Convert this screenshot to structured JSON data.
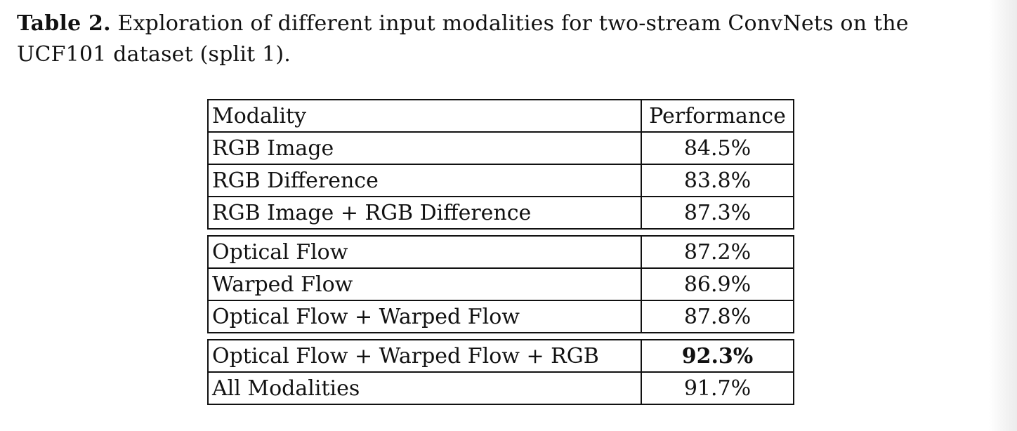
{
  "caption": {
    "label": "Table 2.",
    "text": "Exploration of different input modalities for two-stream ConvNets on the UCF101 dataset (split 1)."
  },
  "table": {
    "header": {
      "modality": "Modality",
      "performance": "Performance"
    },
    "groups": [
      [
        {
          "modality": "RGB Image",
          "performance": "84.5%"
        },
        {
          "modality": "RGB Difference",
          "performance": "83.8%"
        },
        {
          "modality": "RGB Image + RGB Difference",
          "performance": "87.3%"
        }
      ],
      [
        {
          "modality": "Optical Flow",
          "performance": "87.2%"
        },
        {
          "modality": "Warped Flow",
          "performance": "86.9%"
        },
        {
          "modality": "Optical Flow + Warped Flow",
          "performance": "87.8%"
        }
      ],
      [
        {
          "modality": "Optical Flow + Warped Flow + RGB",
          "performance": "92.3%",
          "bold": true
        },
        {
          "modality": "All Modalities",
          "performance": "91.7%"
        }
      ]
    ]
  }
}
